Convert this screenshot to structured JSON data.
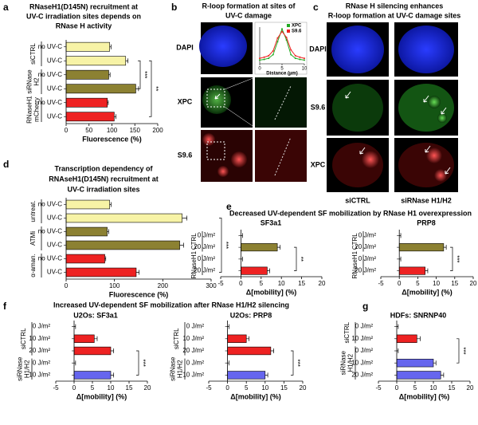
{
  "images": {
    "b": {
      "panel": "b",
      "title": [
        "R-loop formation at sites of",
        "UV-C damage"
      ],
      "rows": [
        "DAPI",
        "XPC",
        "S9.6"
      ]
    },
    "c": {
      "panel": "c",
      "title": [
        "RNase H silencing enhances",
        "R-loop formation at UV-C damage sites"
      ],
      "rows": [
        "DAPI",
        "S9.6",
        "XPC"
      ],
      "columns": [
        "siCTRL",
        "siRNase H1/H2"
      ]
    }
  },
  "chart_data": [
    {
      "type": "hbar",
      "panel": "a",
      "title": [
        "RNaseH1(D145N) recruitment at",
        "UV-C irradiation sites depends on",
        "RNase H activity"
      ],
      "groups": [
        {
          "name": [
            "siCTRL"
          ],
          "categories": [
            "no UV-C",
            "UV-C"
          ],
          "values": [
            95,
            130
          ],
          "errors": [
            3,
            5
          ],
          "colors": [
            "#f7f3a6",
            "#f7f3a6"
          ]
        },
        {
          "name": [
            "siRNase",
            "H2"
          ],
          "categories": [
            "no UV-C",
            "UV-C"
          ],
          "values": [
            93,
            152
          ],
          "errors": [
            3,
            6
          ],
          "colors": [
            "#8c8132",
            "#8c8132"
          ]
        },
        {
          "name": [
            "RNaseH1",
            "mCherry"
          ],
          "categories": [
            "no UV-C",
            "UV-C"
          ],
          "values": [
            90,
            105
          ],
          "errors": [
            2,
            4
          ],
          "colors": [
            "#ee2222",
            "#ee2222"
          ]
        }
      ],
      "xlim": [
        0,
        200
      ],
      "xticks": [
        0,
        50,
        100,
        150,
        200
      ],
      "xlabel": "Fluorescence (%)",
      "annotations": [
        "***",
        "**"
      ]
    },
    {
      "type": "hbar",
      "panel": "d",
      "title": [
        "Transcription dependency of",
        "RNAseH1(D145N) recruitment at",
        "UV-C irradiation sites"
      ],
      "groups": [
        {
          "name": [
            "untreat."
          ],
          "categories": [
            "no UV-C",
            "UV-C"
          ],
          "values": [
            90,
            240
          ],
          "errors": [
            3,
            10
          ],
          "colors": [
            "#f7f3a6",
            "#f7f3a6"
          ]
        },
        {
          "name": [
            "ATMi"
          ],
          "categories": [
            "no UV-C",
            "UV-C"
          ],
          "values": [
            85,
            235
          ],
          "errors": [
            3,
            8
          ],
          "colors": [
            "#8c8132",
            "#8c8132"
          ]
        },
        {
          "name": [
            "α-aman."
          ],
          "categories": [
            "no UV-C",
            "UV-C"
          ],
          "values": [
            80,
            145
          ],
          "errors": [
            2,
            6
          ],
          "colors": [
            "#ee2222",
            "#ee2222"
          ]
        }
      ],
      "xlim": [
        0,
        300
      ],
      "xticks": [
        0,
        100,
        200,
        300
      ],
      "xlabel": "Fluorescence (%)",
      "annotations": [
        "***"
      ]
    },
    {
      "type": "hbar",
      "panel": "e",
      "title": [
        "Decreased UV-dependent SF mobilization by RNase H1 overexpression"
      ],
      "subtitle": "SF3a1",
      "groups": [
        {
          "name": [
            "CTRL"
          ],
          "categories": [
            "0 J/m²",
            "20 J/m²"
          ],
          "values": [
            0,
            9
          ],
          "errors": [
            0.4,
            0.7
          ],
          "colors": [
            "#8c8132",
            "#8c8132"
          ]
        },
        {
          "name": [
            "RNaseH1"
          ],
          "categories": [
            "0 J/m²",
            "20 J/m²"
          ],
          "values": [
            0,
            6.5
          ],
          "errors": [
            0.4,
            0.6
          ],
          "colors": [
            "#ee2222",
            "#ee2222"
          ]
        }
      ],
      "xlim": [
        -5,
        20
      ],
      "xticks": [
        -5,
        0,
        5,
        10,
        15,
        20
      ],
      "xlabel": "Δ[mobility] (%)",
      "annotations": [
        "**"
      ]
    },
    {
      "type": "hbar",
      "subtitle": "PRP8",
      "groups": [
        {
          "name": [
            "CTRL"
          ],
          "categories": [
            "0 J/m²",
            "20 J/m²"
          ],
          "values": [
            0,
            12
          ],
          "errors": [
            0.4,
            0.7
          ],
          "colors": [
            "#8c8132",
            "#8c8132"
          ]
        },
        {
          "name": [
            "RNaseH1"
          ],
          "categories": [
            "0 J/m²",
            "20 J/m²"
          ],
          "values": [
            0,
            7
          ],
          "errors": [
            0.4,
            0.7
          ],
          "colors": [
            "#ee2222",
            "#ee2222"
          ]
        }
      ],
      "xlim": [
        -5,
        20
      ],
      "xticks": [
        -5,
        0,
        5,
        10,
        15,
        20
      ],
      "xlabel": "Δ[mobility] (%)",
      "annotations": [
        "***"
      ]
    },
    {
      "type": "hbar",
      "panel": "f",
      "title": [
        "Increased UV-dependent SF mobilization after RNase H1/H2 silencing"
      ],
      "subtitle": "U2Os: SF3a1",
      "groups": [
        {
          "name": [
            "siCTRL"
          ],
          "categories": [
            "0 J/m²",
            "10 J/m²",
            "20 J/m²"
          ],
          "values": [
            0,
            5.5,
            10
          ],
          "errors": [
            0.4,
            0.8,
            0.8
          ],
          "colors": [
            "#ee2222",
            "#ee2222",
            "#ee2222"
          ]
        },
        {
          "name": [
            "siRNase",
            "H1/H2"
          ],
          "categories": [
            "0 J/m²",
            "10 J/m²"
          ],
          "values": [
            0,
            10
          ],
          "errors": [
            0.4,
            0.8
          ],
          "colors": [
            "#6666ee",
            "#6666ee"
          ]
        }
      ],
      "xlim": [
        -5,
        20
      ],
      "xticks": [
        -5,
        0,
        5,
        10,
        15,
        20
      ],
      "xlabel": "Δ[mobility] (%)",
      "annotations": [
        "***"
      ]
    },
    {
      "type": "hbar",
      "subtitle": "U2Os: PRP8",
      "groups": [
        {
          "name": [
            "siCTRL"
          ],
          "categories": [
            "0 J/m²",
            "10 J/m²",
            "20 J/m²"
          ],
          "values": [
            0,
            5,
            11.5
          ],
          "errors": [
            0.4,
            0.7,
            0.8
          ],
          "colors": [
            "#ee2222",
            "#ee2222",
            "#ee2222"
          ]
        },
        {
          "name": [
            "siRNase",
            "H1/H2"
          ],
          "categories": [
            "0 J/m²",
            "10 J/m²"
          ],
          "values": [
            0,
            10
          ],
          "errors": [
            0.4,
            0.7
          ],
          "colors": [
            "#6666ee",
            "#6666ee"
          ]
        }
      ],
      "xlim": [
        -5,
        20
      ],
      "xticks": [
        -5,
        0,
        5,
        10,
        15,
        20
      ],
      "xlabel": "Δ[mobility] (%)",
      "annotations": [
        "***"
      ]
    },
    {
      "type": "hbar",
      "panel": "g",
      "subtitle": "HDFs: SNRNP40",
      "groups": [
        {
          "name": [
            "siCTRL"
          ],
          "categories": [
            "0 J/m²",
            "10 J/m²"
          ],
          "values": [
            0,
            5.5
          ],
          "errors": [
            0.4,
            0.9
          ],
          "colors": [
            "#ee2222",
            "#ee2222"
          ]
        },
        {
          "name": [
            "siRNase",
            "H1/H2"
          ],
          "categories": [
            "0 J/m²",
            "10 J/m²",
            "20 J/m²"
          ],
          "values": [
            0,
            10,
            12
          ],
          "errors": [
            0.4,
            0.7,
            0.8
          ],
          "colors": [
            "#6666ee",
            "#6666ee",
            "#6666ee"
          ]
        }
      ],
      "xlim": [
        -5,
        20
      ],
      "xticks": [
        -5,
        0,
        5,
        10,
        15,
        20
      ],
      "xlabel": "Δ[mobility] (%)",
      "annotations": [
        "***"
      ]
    },
    {
      "type": "line",
      "x": [
        0,
        1,
        2,
        3,
        4,
        5,
        6,
        7,
        8,
        9,
        10
      ],
      "series": [
        {
          "name": "XPC",
          "color": "#22aa22",
          "values": [
            10,
            12,
            15,
            25,
            60,
            95,
            65,
            25,
            15,
            12,
            10
          ]
        },
        {
          "name": "S9.6",
          "color": "#ee2222",
          "values": [
            15,
            18,
            22,
            35,
            70,
            88,
            72,
            38,
            22,
            18,
            15
          ]
        }
      ],
      "xlim": [
        0,
        10
      ],
      "xticks": [
        0,
        5,
        10
      ],
      "ylim": [
        0,
        100
      ],
      "xlabel": "Distance (µm)"
    }
  ]
}
